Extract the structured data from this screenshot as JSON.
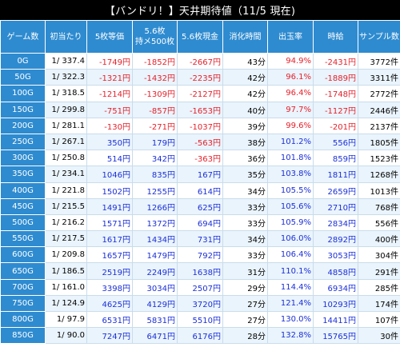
{
  "title": "【バンドリ！】天井期待値（11/5 現在)",
  "colors": {
    "header_bg": "#2e8bd0",
    "negative": "#e5202a",
    "positive": "#1b2fd8"
  },
  "headers": [
    "ゲーム数",
    "初当たり",
    "5枚等価",
    "5.6枚\n持メ500枚",
    "5.6枚現金",
    "消化時間",
    "出玉率",
    "時給",
    "サンプル数"
  ],
  "rows": [
    {
      "game": "0G",
      "first": "1/ 337.4",
      "eq5": "-1749円",
      "mochi": "-1852円",
      "cash": "-2667円",
      "time": "43分",
      "rate": "94.9%",
      "wage": "-2431円",
      "sample": "3772件"
    },
    {
      "game": "50G",
      "first": "1/ 322.3",
      "eq5": "-1321円",
      "mochi": "-1432円",
      "cash": "-2235円",
      "time": "42分",
      "rate": "96.1%",
      "wage": "-1889円",
      "sample": "3311件"
    },
    {
      "game": "100G",
      "first": "1/ 318.5",
      "eq5": "-1214円",
      "mochi": "-1309円",
      "cash": "-2127円",
      "time": "42分",
      "rate": "96.4%",
      "wage": "-1748円",
      "sample": "2772件"
    },
    {
      "game": "150G",
      "first": "1/ 299.8",
      "eq5": "-751円",
      "mochi": "-857円",
      "cash": "-1653円",
      "time": "40分",
      "rate": "97.7%",
      "wage": "-1127円",
      "sample": "2446件"
    },
    {
      "game": "200G",
      "first": "1/ 281.1",
      "eq5": "-130円",
      "mochi": "-271円",
      "cash": "-1037円",
      "time": "39分",
      "rate": "99.6%",
      "wage": "-201円",
      "sample": "2137件"
    },
    {
      "game": "250G",
      "first": "1/ 267.1",
      "eq5": "350円",
      "mochi": "179円",
      "cash": "-563円",
      "time": "38分",
      "rate": "101.2%",
      "wage": "556円",
      "sample": "1805件"
    },
    {
      "game": "300G",
      "first": "1/ 250.8",
      "eq5": "514円",
      "mochi": "342円",
      "cash": "-363円",
      "time": "36分",
      "rate": "101.8%",
      "wage": "859円",
      "sample": "1523件"
    },
    {
      "game": "350G",
      "first": "1/ 234.1",
      "eq5": "1046円",
      "mochi": "835円",
      "cash": "167円",
      "time": "35分",
      "rate": "103.8%",
      "wage": "1811円",
      "sample": "1268件"
    },
    {
      "game": "400G",
      "first": "1/ 221.8",
      "eq5": "1502円",
      "mochi": "1255円",
      "cash": "614円",
      "time": "34分",
      "rate": "105.5%",
      "wage": "2659円",
      "sample": "1013件"
    },
    {
      "game": "450G",
      "first": "1/ 215.5",
      "eq5": "1491円",
      "mochi": "1266円",
      "cash": "625円",
      "time": "33分",
      "rate": "105.6%",
      "wage": "2710円",
      "sample": "768件"
    },
    {
      "game": "500G",
      "first": "1/ 216.2",
      "eq5": "1571円",
      "mochi": "1372円",
      "cash": "694円",
      "time": "33分",
      "rate": "105.9%",
      "wage": "2834円",
      "sample": "556件"
    },
    {
      "game": "550G",
      "first": "1/ 217.5",
      "eq5": "1617円",
      "mochi": "1434円",
      "cash": "731円",
      "time": "34分",
      "rate": "106.0%",
      "wage": "2892円",
      "sample": "400件"
    },
    {
      "game": "600G",
      "first": "1/ 209.8",
      "eq5": "1657円",
      "mochi": "1479円",
      "cash": "792円",
      "time": "33分",
      "rate": "106.4%",
      "wage": "3053円",
      "sample": "304件"
    },
    {
      "game": "650G",
      "first": "1/ 186.5",
      "eq5": "2519円",
      "mochi": "2249円",
      "cash": "1638円",
      "time": "31分",
      "rate": "110.1%",
      "wage": "4858円",
      "sample": "291件"
    },
    {
      "game": "700G",
      "first": "1/ 161.0",
      "eq5": "3398円",
      "mochi": "3034円",
      "cash": "2507円",
      "time": "29分",
      "rate": "114.4%",
      "wage": "6934円",
      "sample": "285件"
    },
    {
      "game": "750G",
      "first": "1/ 124.9",
      "eq5": "4625円",
      "mochi": "4129円",
      "cash": "3720円",
      "time": "27分",
      "rate": "121.4%",
      "wage": "10293円",
      "sample": "174件"
    },
    {
      "game": "800G",
      "first": "1/ 97.9",
      "eq5": "6531円",
      "mochi": "5831円",
      "cash": "5510円",
      "time": "27分",
      "rate": "130.0%",
      "wage": "14411円",
      "sample": "107件"
    },
    {
      "game": "850G",
      "first": "1/ 90.0",
      "eq5": "7247円",
      "mochi": "6471円",
      "cash": "6176円",
      "time": "28分",
      "rate": "132.8%",
      "wage": "15765円",
      "sample": "30件"
    }
  ]
}
